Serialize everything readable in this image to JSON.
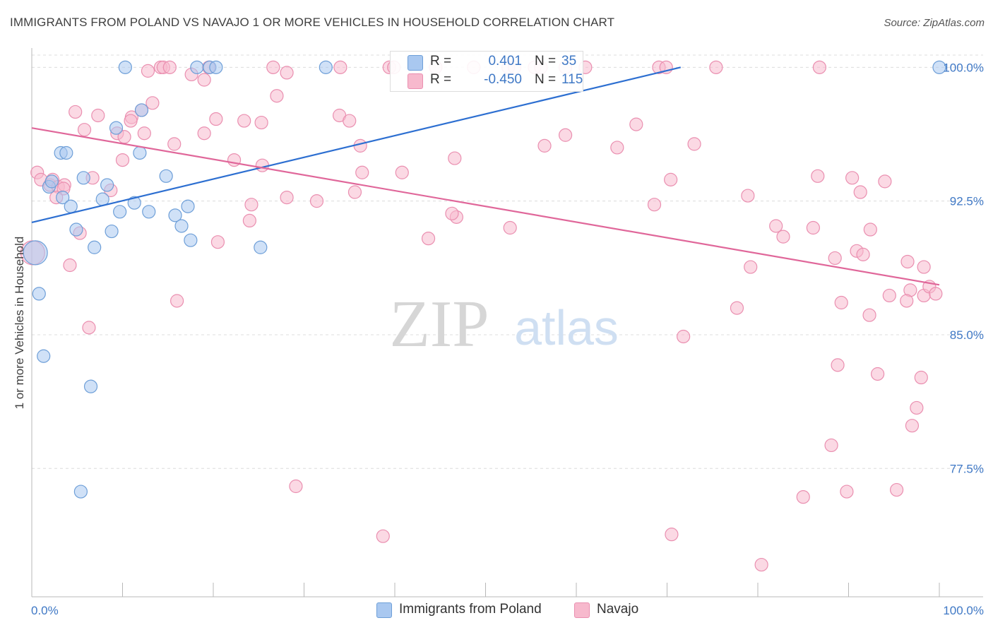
{
  "title": "IMMIGRANTS FROM POLAND VS NAVAJO 1 OR MORE VEHICLES IN HOUSEHOLD CORRELATION CHART",
  "source": "Source: ZipAtlas.com",
  "watermark": {
    "zip": "ZIP",
    "atlas": "atlas"
  },
  "colors": {
    "blue_fill": "#a9c8f0",
    "blue_stroke": "#6e9fd8",
    "blue_line": "#2d6fd1",
    "pink_fill": "#f7b9cd",
    "pink_stroke": "#ea8fb0",
    "pink_line": "#e0679a",
    "grid": "#dcdcdc",
    "axis_label": "#3f78c5"
  },
  "legend": {
    "blue": {
      "r_label": "R =",
      "r_value": "0.401",
      "n_label": "N =",
      "n_value": "35"
    },
    "pink": {
      "r_label": "R =",
      "r_value": "-0.450",
      "n_label": "N =",
      "n_value": "115"
    }
  },
  "bottom_legend": {
    "blue": "Immigrants from Poland",
    "pink": "Navajo"
  },
  "chart_data": {
    "type": "scatter",
    "title": "IMMIGRANTS FROM POLAND VS NAVAJO 1 OR MORE VEHICLES IN HOUSEHOLD CORRELATION CHART",
    "xlabel": "",
    "ylabel": "1 or more Vehicles in Household",
    "xlim": [
      0,
      100
    ],
    "ylim": [
      70.3,
      101.4
    ],
    "x_tick_labels": [
      "0.0%",
      "100.0%"
    ],
    "y_ticks": [
      {
        "value": 100.0,
        "label": "100.0%"
      },
      {
        "value": 92.5,
        "label": "92.5%"
      },
      {
        "value": 85.0,
        "label": "85.0%"
      },
      {
        "value": 77.5,
        "label": "77.5%"
      }
    ],
    "grid": true,
    "series": [
      {
        "name": "Immigrants from Poland",
        "color": "blue",
        "trend": {
          "x0": 0,
          "y0": 91.3,
          "x1": 71.5,
          "y1": 100.0
        },
        "points": [
          [
            10.3,
            100.0
          ],
          [
            18.2,
            100.0
          ],
          [
            19.6,
            100.0
          ],
          [
            20.3,
            100.0
          ],
          [
            32.4,
            100.0
          ],
          [
            100.0,
            100.0
          ],
          [
            12.1,
            97.6
          ],
          [
            9.3,
            96.6
          ],
          [
            3.2,
            95.2
          ],
          [
            3.8,
            95.2
          ],
          [
            11.9,
            95.2
          ],
          [
            5.7,
            93.8
          ],
          [
            8.3,
            93.4
          ],
          [
            14.8,
            93.9
          ],
          [
            1.9,
            93.3
          ],
          [
            2.2,
            93.6
          ],
          [
            3.4,
            92.7
          ],
          [
            7.8,
            92.6
          ],
          [
            11.3,
            92.4
          ],
          [
            4.3,
            92.2
          ],
          [
            17.2,
            92.2
          ],
          [
            9.7,
            91.9
          ],
          [
            12.9,
            91.9
          ],
          [
            15.8,
            91.7
          ],
          [
            16.5,
            91.1
          ],
          [
            4.9,
            90.9
          ],
          [
            8.8,
            90.8
          ],
          [
            17.5,
            90.3
          ],
          [
            6.9,
            89.9
          ],
          [
            25.2,
            89.9
          ],
          [
            0.4,
            89.6
          ],
          [
            0.8,
            87.3
          ],
          [
            1.3,
            83.8
          ],
          [
            6.5,
            82.1
          ],
          [
            5.4,
            76.2
          ]
        ]
      },
      {
        "name": "Navajo",
        "color": "pink",
        "trend": {
          "x0": 0,
          "y0": 96.6,
          "x1": 100,
          "y1": 87.8
        },
        "points": [
          [
            14.2,
            100.0
          ],
          [
            14.5,
            100.0
          ],
          [
            15.2,
            100.0
          ],
          [
            19.5,
            100.0
          ],
          [
            26.6,
            100.0
          ],
          [
            34.0,
            100.0
          ],
          [
            39.4,
            100.0
          ],
          [
            39.9,
            100.0
          ],
          [
            42.3,
            100.0
          ],
          [
            44.5,
            100.0
          ],
          [
            48.7,
            100.0
          ],
          [
            52.5,
            100.0
          ],
          [
            53.2,
            100.0
          ],
          [
            55.4,
            100.0
          ],
          [
            56.1,
            100.0
          ],
          [
            58.8,
            100.0
          ],
          [
            61.0,
            100.0
          ],
          [
            69.1,
            100.0
          ],
          [
            69.9,
            100.0
          ],
          [
            75.4,
            100.0
          ],
          [
            86.8,
            100.0
          ],
          [
            12.8,
            99.8
          ],
          [
            17.6,
            99.6
          ],
          [
            28.1,
            99.7
          ],
          [
            19.0,
            99.3
          ],
          [
            27.0,
            98.4
          ],
          [
            13.3,
            98.0
          ],
          [
            4.8,
            97.5
          ],
          [
            7.3,
            97.3
          ],
          [
            12.1,
            97.6
          ],
          [
            11.0,
            97.2
          ],
          [
            10.9,
            97.0
          ],
          [
            20.3,
            97.1
          ],
          [
            23.4,
            97.0
          ],
          [
            25.3,
            96.9
          ],
          [
            33.9,
            97.3
          ],
          [
            35.0,
            97.0
          ],
          [
            66.6,
            96.8
          ],
          [
            12.4,
            96.3
          ],
          [
            5.8,
            96.5
          ],
          [
            9.4,
            96.3
          ],
          [
            10.2,
            96.1
          ],
          [
            19.0,
            96.3
          ],
          [
            58.8,
            96.2
          ],
          [
            15.7,
            95.7
          ],
          [
            36.2,
            95.6
          ],
          [
            56.5,
            95.6
          ],
          [
            64.5,
            95.5
          ],
          [
            73.0,
            95.7
          ],
          [
            10.0,
            94.8
          ],
          [
            22.3,
            94.8
          ],
          [
            25.4,
            94.5
          ],
          [
            46.6,
            94.9
          ],
          [
            0.6,
            94.1
          ],
          [
            1.0,
            93.7
          ],
          [
            2.0,
            93.4
          ],
          [
            2.3,
            93.7
          ],
          [
            2.9,
            93.3
          ],
          [
            3.6,
            93.4
          ],
          [
            3.5,
            93.2
          ],
          [
            6.7,
            93.8
          ],
          [
            8.7,
            93.1
          ],
          [
            36.4,
            94.1
          ],
          [
            40.8,
            94.1
          ],
          [
            70.4,
            93.7
          ],
          [
            86.6,
            93.9
          ],
          [
            90.4,
            93.8
          ],
          [
            94.0,
            93.6
          ],
          [
            2.7,
            92.7
          ],
          [
            28.1,
            92.7
          ],
          [
            31.4,
            92.5
          ],
          [
            35.6,
            93.0
          ],
          [
            24.2,
            92.3
          ],
          [
            68.6,
            92.3
          ],
          [
            78.9,
            92.8
          ],
          [
            91.3,
            93.0
          ],
          [
            0.1,
            89.6
          ],
          [
            5.3,
            90.7
          ],
          [
            24.0,
            91.4
          ],
          [
            46.8,
            91.6
          ],
          [
            46.3,
            91.8
          ],
          [
            52.7,
            91.0
          ],
          [
            20.5,
            90.2
          ],
          [
            82.0,
            91.1
          ],
          [
            82.8,
            90.5
          ],
          [
            86.1,
            91.0
          ],
          [
            90.9,
            89.7
          ],
          [
            92.4,
            90.9
          ],
          [
            43.7,
            90.4
          ],
          [
            88.5,
            89.3
          ],
          [
            91.6,
            89.5
          ],
          [
            96.5,
            89.1
          ],
          [
            4.2,
            88.9
          ],
          [
            79.2,
            88.8
          ],
          [
            98.3,
            88.8
          ],
          [
            94.5,
            87.2
          ],
          [
            96.8,
            87.5
          ],
          [
            98.3,
            87.2
          ],
          [
            98.9,
            87.7
          ],
          [
            99.6,
            87.3
          ],
          [
            96.4,
            86.9
          ],
          [
            16.0,
            86.9
          ],
          [
            89.2,
            86.8
          ],
          [
            77.7,
            86.5
          ],
          [
            92.3,
            86.1
          ],
          [
            6.3,
            85.4
          ],
          [
            71.8,
            84.9
          ],
          [
            88.8,
            83.3
          ],
          [
            93.2,
            82.8
          ],
          [
            98.0,
            82.6
          ],
          [
            97.5,
            80.9
          ],
          [
            97.0,
            79.9
          ],
          [
            88.1,
            78.8
          ],
          [
            29.1,
            76.5
          ],
          [
            85.0,
            75.9
          ],
          [
            89.8,
            76.2
          ],
          [
            95.3,
            76.3
          ],
          [
            38.7,
            73.7
          ],
          [
            70.5,
            73.8
          ],
          [
            80.4,
            72.1
          ]
        ]
      }
    ]
  }
}
